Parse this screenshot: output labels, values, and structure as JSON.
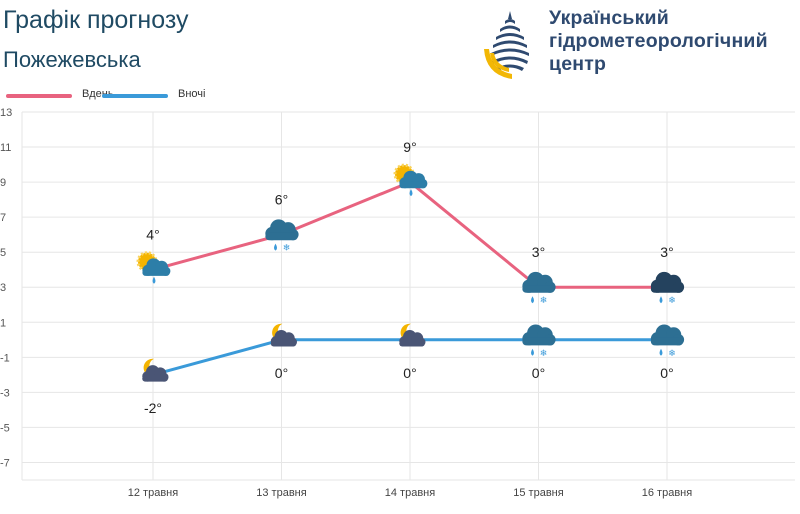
{
  "header": {
    "title": "Графік прогнозу",
    "location": "Пожежевська",
    "brand": "Український\nгідрометеорологічний\nцентр"
  },
  "legend": [
    {
      "name": "Вдень",
      "color": "#e8637f"
    },
    {
      "name": "Вночі",
      "color": "#3a9ad9"
    }
  ],
  "chart_data": {
    "type": "line",
    "categories": [
      "12 травня",
      "13 травня",
      "14 травня",
      "15 травня",
      "16 травня"
    ],
    "series": [
      {
        "name": "Вдень",
        "color": "#e8637f",
        "values": [
          4,
          6,
          9,
          3,
          3
        ],
        "labels": [
          "4°",
          "6°",
          "9°",
          "3°",
          "3°"
        ],
        "icons": [
          "sun-cloud-rain-icon",
          "cloud-rain-snow-icon",
          "sun-cloud-rain-icon",
          "cloud-rain-snow-icon",
          "dark-cloud-rain-snow-icon"
        ]
      },
      {
        "name": "Вночі",
        "color": "#3a9ad9",
        "values": [
          -2,
          0,
          0,
          0,
          0
        ],
        "labels": [
          "-2°",
          "0°",
          "0°",
          "0°",
          "0°"
        ],
        "icons": [
          "moon-cloud-icon",
          "moon-cloud-icon",
          "moon-cloud-icon",
          "cloud-rain-snow-icon",
          "cloud-rain-snow-icon"
        ]
      }
    ],
    "yticks": [
      "13",
      "11",
      "9",
      "7",
      "5",
      "3",
      "1",
      "-1",
      "-3",
      "-5",
      "-7"
    ],
    "ylim": [
      -8,
      13
    ],
    "grid": true,
    "legend_position": "top-left"
  }
}
